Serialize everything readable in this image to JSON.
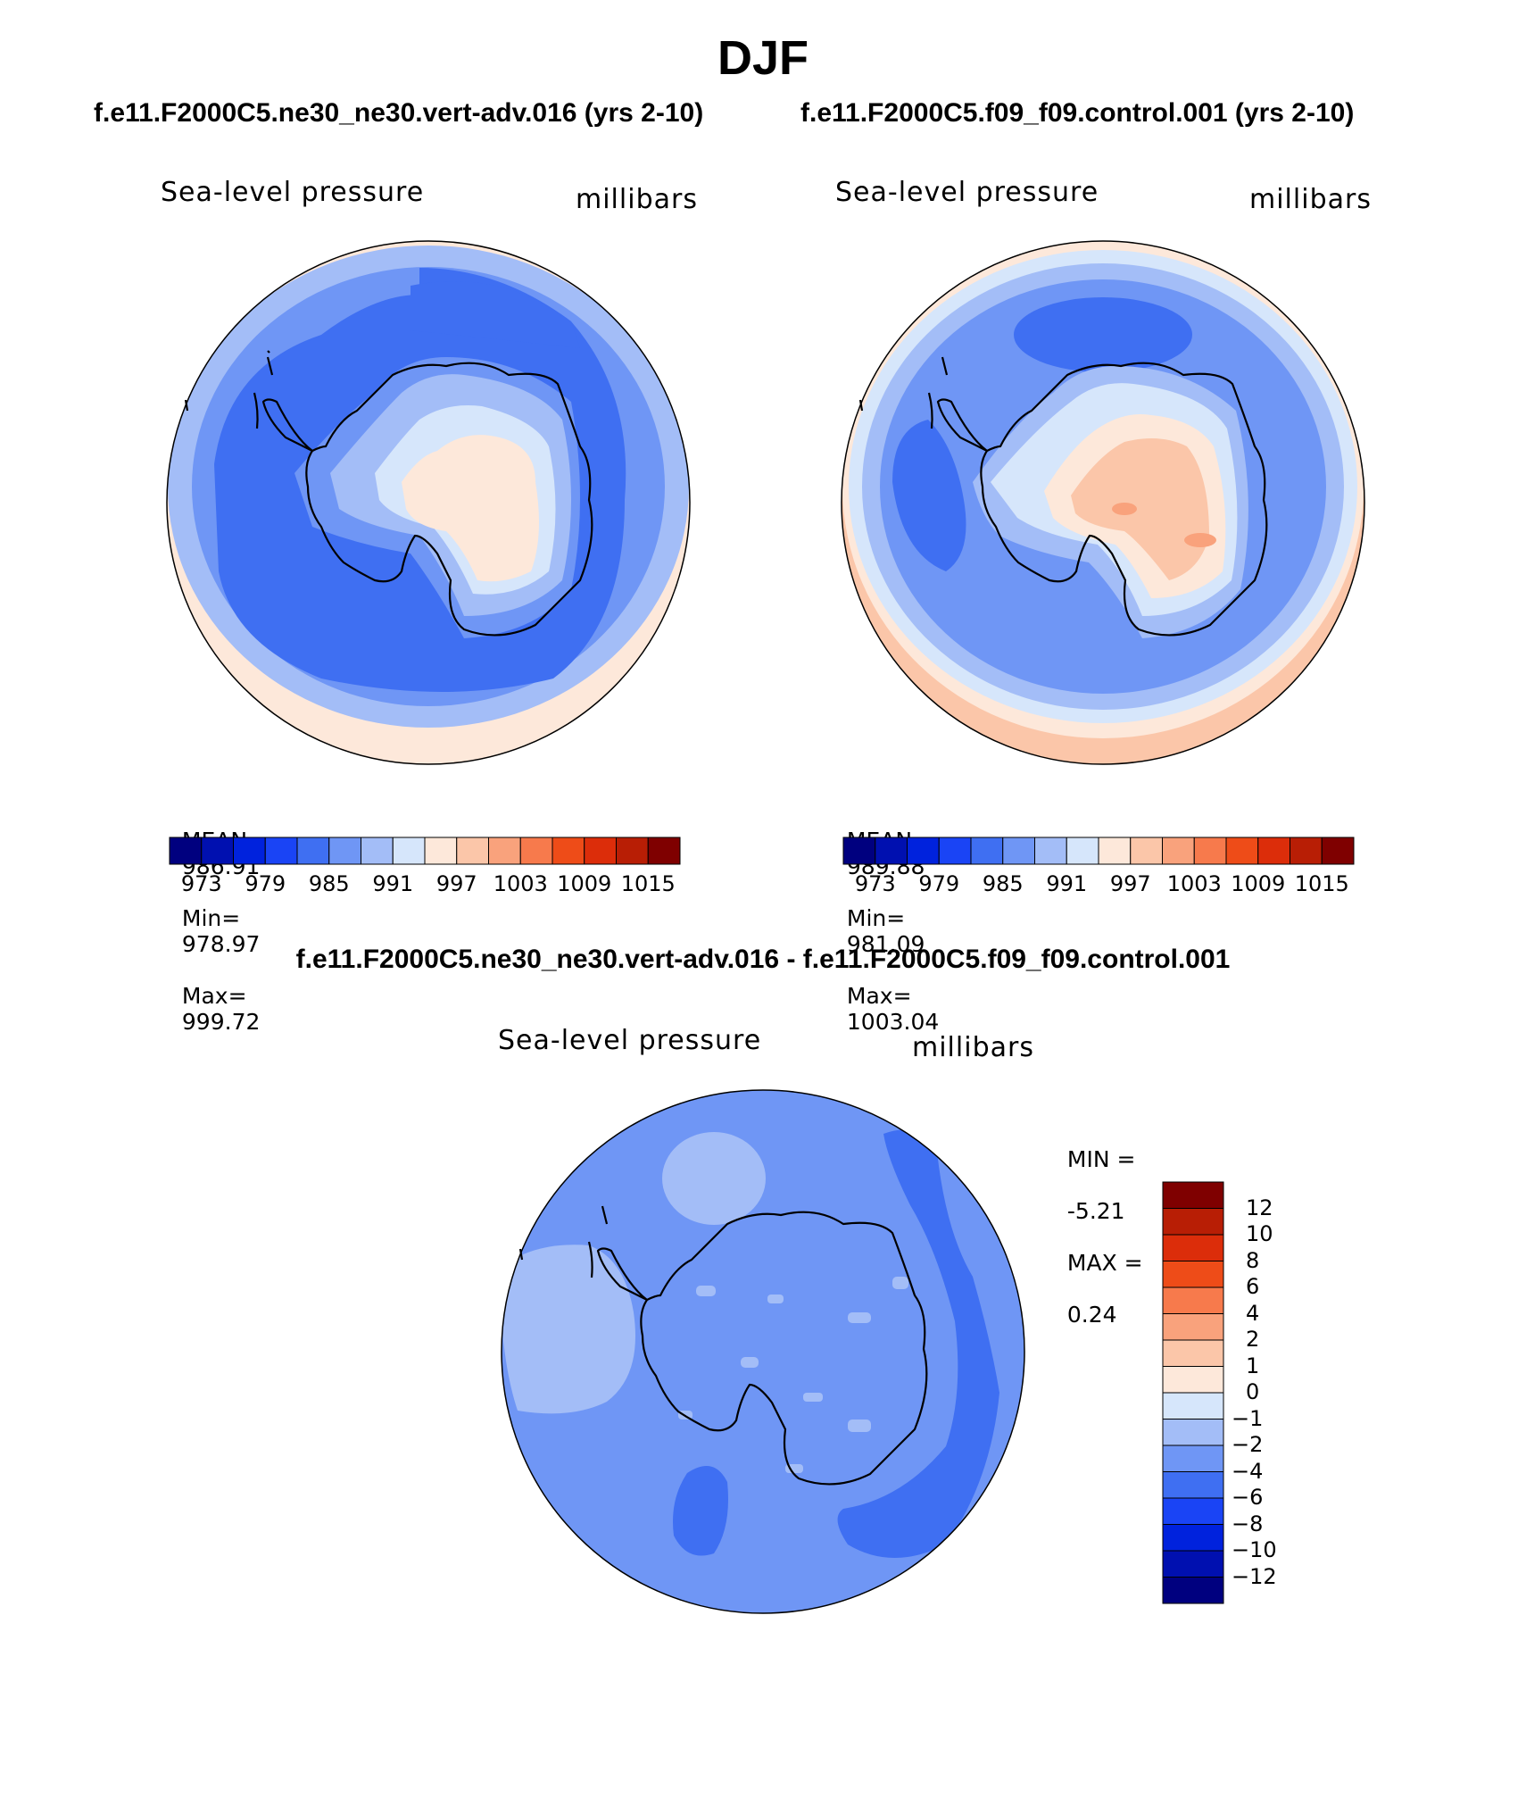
{
  "page": {
    "season_title": "DJF",
    "diff_title": "f.e11.F2000C5.ne30_ne30.vert-adv.016 - f.e11.F2000C5.f09_f09.control.001"
  },
  "panels": [
    {
      "case_title": "f.e11.F2000C5.ne30_ne30.vert-adv.016 (yrs 2-10)",
      "variable": "Sea-level pressure",
      "units": "millibars",
      "stats": {
        "mean_label": "MEAN=",
        "mean": "986.91",
        "min_label": "Min=",
        "min": "978.97",
        "max_label": "Max=",
        "max": "999.72"
      }
    },
    {
      "case_title": "f.e11.F2000C5.f09_f09.control.001 (yrs 2-10)",
      "variable": "Sea-level pressure",
      "units": "millibars",
      "stats": {
        "mean_label": "MEAN=",
        "mean": "989.88",
        "min_label": "Min=",
        "min": "981.09",
        "max_label": "Max=",
        "max": "1003.04"
      }
    },
    {
      "variable": "Sea-level pressure",
      "units": "millibars",
      "stats": {
        "min_label": "MIN =",
        "min": "-5.21",
        "max_label": "MAX =",
        "max": "0.24"
      }
    }
  ],
  "colorbar_abs": {
    "colors": [
      "#00007f",
      "#0010b0",
      "#0022dd",
      "#1a44f5",
      "#3f6ff2",
      "#6f96f5",
      "#a3bdf7",
      "#d6e6fb",
      "#fde8da",
      "#fbc6a9",
      "#f9a27c",
      "#f77a4c",
      "#ee4c18",
      "#dc2d0a",
      "#b81e05",
      "#7f0000"
    ],
    "tick_labels": [
      "973",
      "979",
      "985",
      "991",
      "997",
      "1003",
      "1009",
      "1015"
    ]
  },
  "colorbar_diff": {
    "colors": [
      "#00007f",
      "#0010b0",
      "#0022dd",
      "#1a44f5",
      "#3f6ff2",
      "#6f96f5",
      "#a3bdf7",
      "#d6e6fb",
      "#fde8da",
      "#fbc6a9",
      "#f9a27c",
      "#f77a4c",
      "#ee4c18",
      "#dc2d0a",
      "#b81e05",
      "#7f0000"
    ],
    "tick_labels": [
      "12",
      "10",
      "8",
      "6",
      "4",
      "2",
      "1",
      "0",
      "-1",
      "-2",
      "-4",
      "-6",
      "-8",
      "-10",
      "-12"
    ]
  },
  "map_fills": {
    "ocean_ring_outer": "#fde8da",
    "low_band": "#3f6ff2",
    "mid_band": "#6f96f5",
    "light_band": "#a3bdf7",
    "pale": "#d6e6fb",
    "high": "#fde8da",
    "higher": "#fbc6a9",
    "highest": "#f9a27c",
    "diff_base": "#6f96f5",
    "diff_light": "#a3bdf7",
    "diff_dark": "#3f6ff2",
    "coast": "#000000"
  }
}
